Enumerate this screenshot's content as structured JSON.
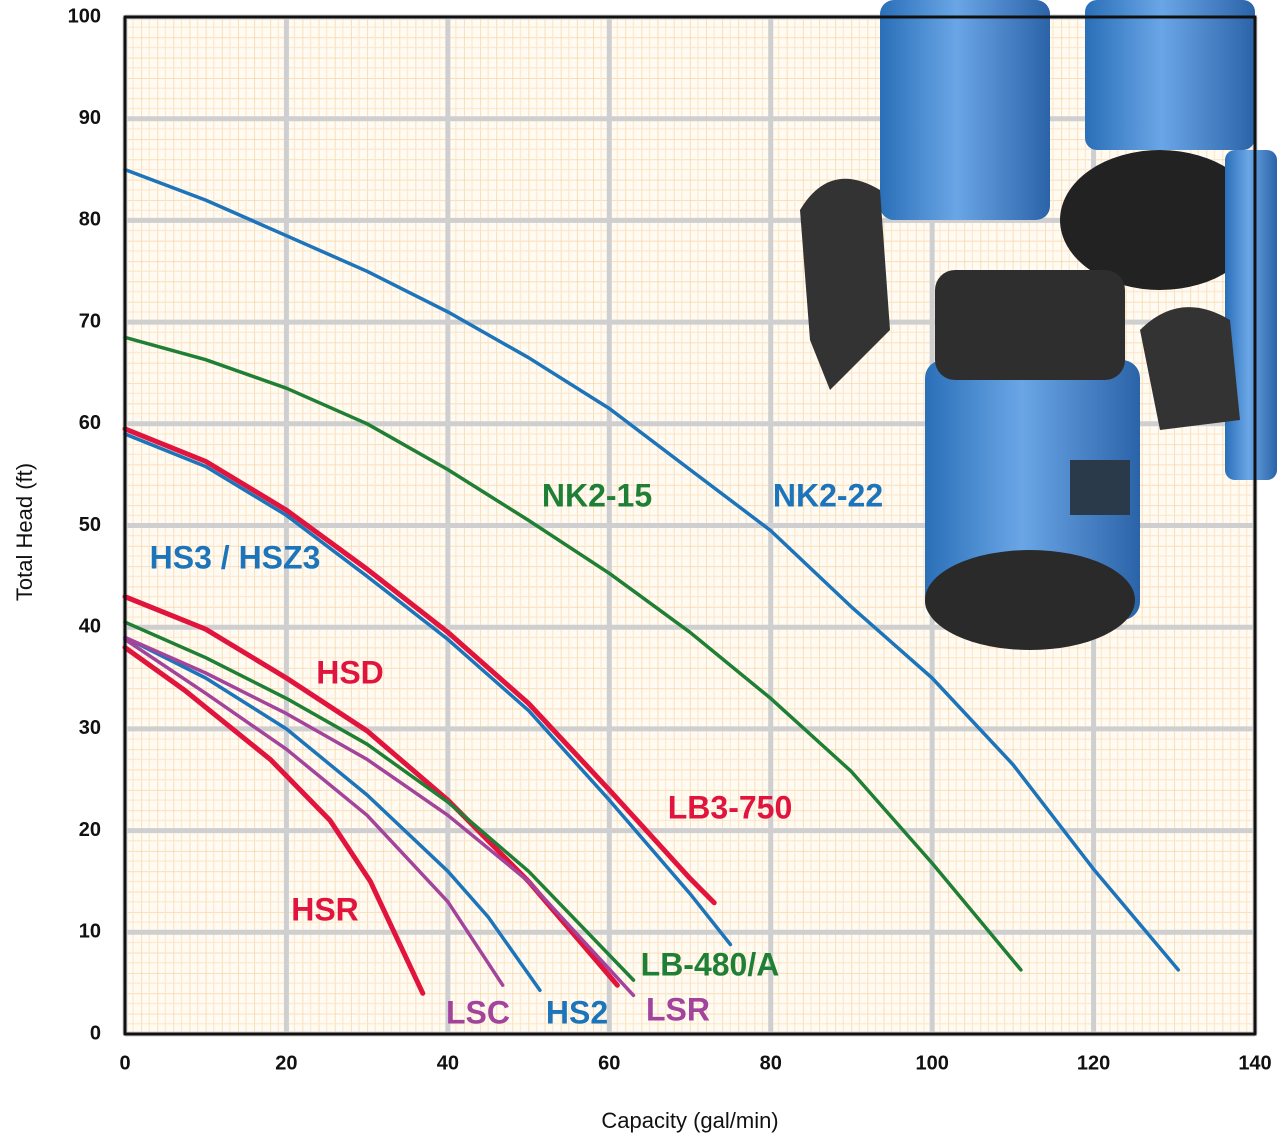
{
  "chart_data": {
    "type": "line",
    "x_label": "Capacity (gal/min)",
    "y_label": "Total Head (ft)",
    "xlim": [
      0,
      140
    ],
    "xticks": [
      0,
      20,
      40,
      60,
      80,
      100,
      120,
      140
    ],
    "ylim": [
      0,
      100
    ],
    "yticks": [
      0,
      10,
      20,
      30,
      40,
      50,
      60,
      70,
      80,
      90,
      100
    ],
    "grid": true,
    "series": [
      {
        "name": "NK2-22",
        "color": "#1c74bb",
        "x": [
          0,
          10,
          20,
          30,
          40,
          50,
          60,
          70,
          80,
          90,
          100,
          110,
          120,
          130.5
        ],
        "values": [
          85,
          82,
          78.5,
          75,
          71,
          66.5,
          61.5,
          55.5,
          49.5,
          42,
          35,
          26.5,
          16.2,
          6.3
        ]
      },
      {
        "name": "NK2-15",
        "color": "#1f7f35",
        "x": [
          0,
          10,
          20,
          30,
          40,
          50,
          60,
          70,
          80,
          90,
          100,
          111
        ],
        "values": [
          68.5,
          66.3,
          63.5,
          60,
          55.5,
          50.5,
          45.3,
          39.5,
          33,
          25.8,
          16.8,
          6.3
        ]
      },
      {
        "name": "LB3-750",
        "color": "#e0143c",
        "x": [
          0,
          10,
          20,
          30,
          40,
          50,
          60,
          70,
          73
        ],
        "values": [
          59.5,
          56.3,
          51.5,
          45.7,
          39.5,
          32.5,
          24,
          15.3,
          12.9
        ]
      },
      {
        "name": "HS3 / HSZ3",
        "color": "#1c74bb",
        "x": [
          0,
          10,
          20,
          30,
          40,
          50,
          60,
          70,
          75
        ],
        "values": [
          59,
          55.8,
          51,
          45,
          38.8,
          31.8,
          23,
          13.8,
          8.8
        ]
      },
      {
        "name": "HSD",
        "color": "#e0143c",
        "x": [
          0,
          10,
          20,
          30,
          40,
          50,
          61
        ],
        "values": [
          43,
          39.8,
          35,
          29.8,
          23,
          15,
          4.8
        ]
      },
      {
        "name": "LB-480/A",
        "color": "#1f7f35",
        "x": [
          0,
          10,
          20,
          30,
          40,
          50,
          63
        ],
        "values": [
          40.5,
          37,
          33,
          28.5,
          22.8,
          16,
          5.3
        ]
      },
      {
        "name": "HS2",
        "color": "#1c74bb",
        "x": [
          0,
          10,
          20,
          30,
          40,
          45,
          51.4
        ],
        "values": [
          39,
          35,
          30,
          23.5,
          16,
          11.5,
          4.3
        ]
      },
      {
        "name": "LSR",
        "color": "#a2449c",
        "x": [
          0,
          10,
          20,
          30,
          40,
          50,
          63
        ],
        "values": [
          39,
          35.5,
          31.5,
          27,
          21.5,
          15,
          3.8
        ]
      },
      {
        "name": "LSC",
        "color": "#a2449c",
        "x": [
          0,
          10,
          20,
          30,
          40,
          46.8
        ],
        "values": [
          38.8,
          33.5,
          28,
          21.5,
          13,
          4.8
        ]
      },
      {
        "name": "HSR",
        "color": "#e0143c",
        "x": [
          0,
          7.4,
          18,
          25.4,
          30.4,
          36.9
        ],
        "values": [
          38,
          33.8,
          27,
          21,
          15,
          4
        ]
      }
    ]
  }
}
